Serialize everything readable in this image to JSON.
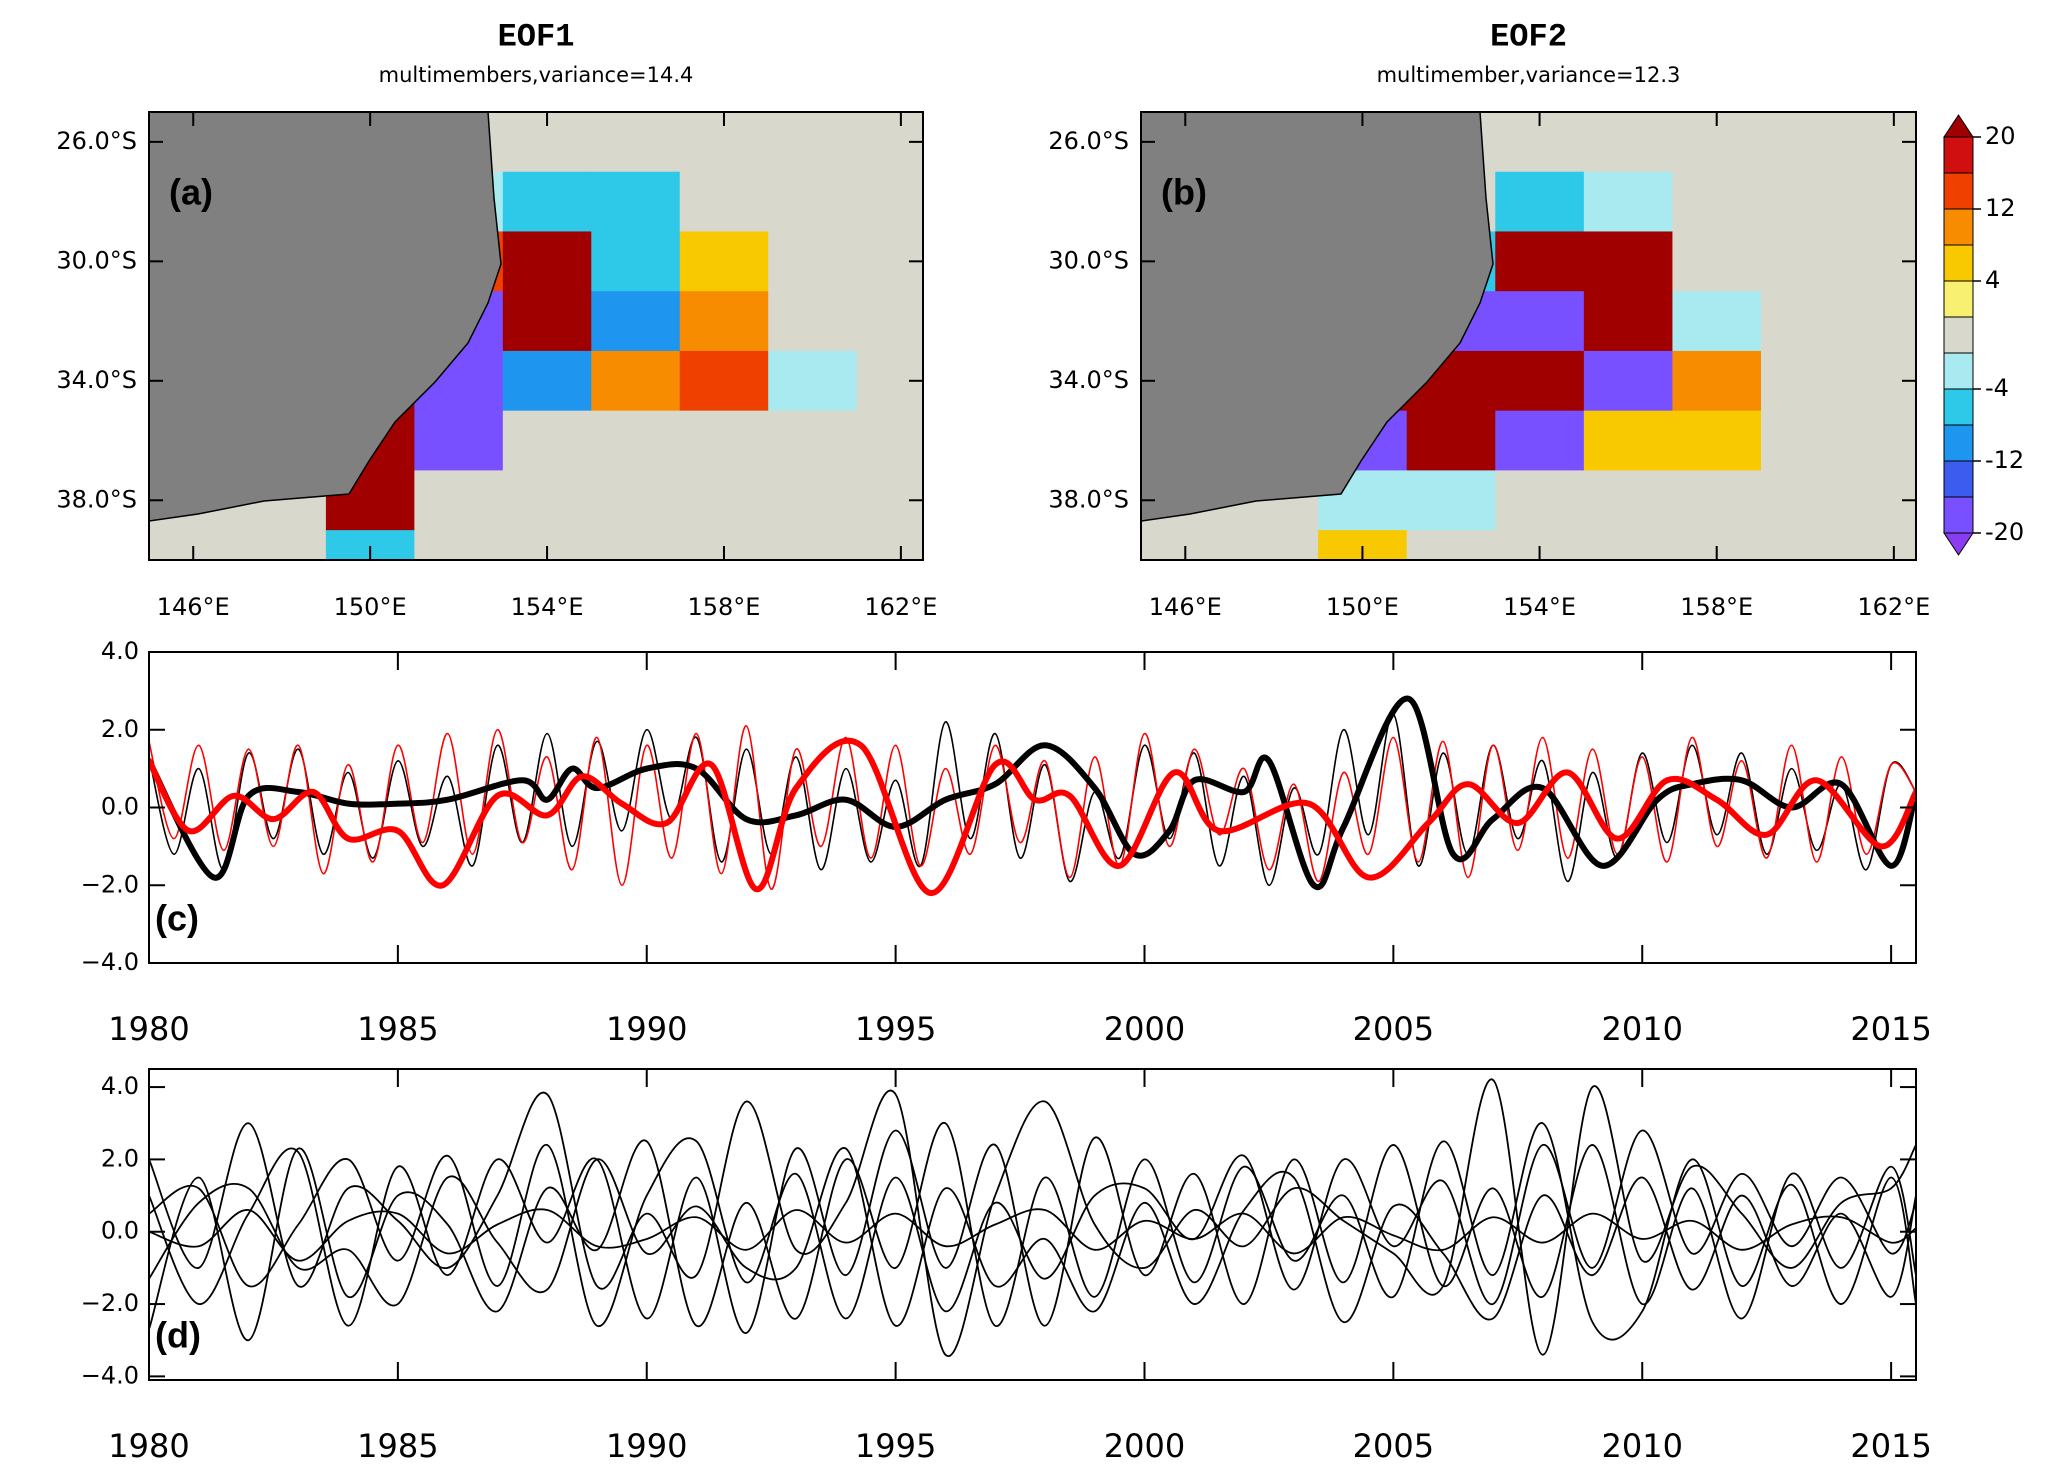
{
  "chart_data": [
    {
      "type": "map",
      "title": "EOF1",
      "subtitle": "multimembers,variance=14.4",
      "panel_label": "(a)",
      "xlim": [
        145,
        162.5
      ],
      "ylim": [
        25,
        40
      ],
      "xticks": [
        {
          "value": 146,
          "label": "146°E"
        },
        {
          "value": 150,
          "label": "150°E"
        },
        {
          "value": 154,
          "label": "154°E"
        },
        {
          "value": 158,
          "label": "158°E"
        },
        {
          "value": 162,
          "label": "162°E"
        }
      ],
      "yticks": [
        {
          "value": 26,
          "label": "26.0°S"
        },
        {
          "value": 30,
          "label": "30.0°S"
        },
        {
          "value": 34,
          "label": "34.0°S"
        },
        {
          "value": 38,
          "label": "38.0°S"
        }
      ],
      "lons": [
        146,
        148,
        150,
        152,
        154,
        156,
        158,
        160,
        162
      ],
      "lats": [
        26,
        28,
        30,
        32,
        34,
        36,
        38,
        40
      ],
      "field": [
        [
          null,
          null,
          null,
          0,
          0,
          0,
          0,
          0,
          0
        ],
        [
          null,
          null,
          null,
          -4,
          -8,
          -8,
          0,
          0,
          0
        ],
        [
          null,
          null,
          null,
          12,
          20,
          -8,
          4,
          0,
          0
        ],
        [
          null,
          null,
          -4,
          -20,
          20,
          -12,
          8,
          0,
          0
        ],
        [
          null,
          null,
          20,
          -20,
          -12,
          8,
          12,
          -4,
          0
        ],
        [
          null,
          null,
          20,
          -20,
          0,
          0,
          0,
          0,
          0
        ],
        [
          null,
          null,
          20,
          0,
          0,
          0,
          0,
          0,
          0
        ],
        [
          null,
          null,
          -8,
          0,
          0,
          0,
          0,
          0,
          0
        ]
      ]
    },
    {
      "type": "map",
      "title": "EOF2",
      "subtitle": "multimember,variance=12.3",
      "panel_label": "(b)",
      "xlim": [
        145,
        162.5
      ],
      "ylim": [
        25,
        40
      ],
      "xticks": [
        {
          "value": 146,
          "label": "146°E"
        },
        {
          "value": 150,
          "label": "150°E"
        },
        {
          "value": 154,
          "label": "154°E"
        },
        {
          "value": 158,
          "label": "158°E"
        },
        {
          "value": 162,
          "label": "162°E"
        }
      ],
      "yticks": [
        {
          "value": 26,
          "label": "26.0°S"
        },
        {
          "value": 30,
          "label": "30.0°S"
        },
        {
          "value": 34,
          "label": "34.0°S"
        },
        {
          "value": 38,
          "label": "38.0°S"
        }
      ],
      "lons": [
        146,
        148,
        150,
        152,
        154,
        156,
        158,
        160,
        162
      ],
      "lats": [
        26,
        28,
        30,
        32,
        34,
        36,
        38,
        40
      ],
      "field": [
        [
          null,
          null,
          null,
          0,
          0,
          0,
          0,
          0,
          0
        ],
        [
          null,
          null,
          null,
          0,
          -8,
          -4,
          0,
          0,
          0
        ],
        [
          null,
          null,
          null,
          -8,
          20,
          20,
          0,
          0,
          0
        ],
        [
          null,
          null,
          -8,
          -20,
          -20,
          20,
          -4,
          0,
          0
        ],
        [
          null,
          null,
          20,
          20,
          20,
          -20,
          8,
          0,
          0
        ],
        [
          null,
          null,
          -20,
          20,
          -20,
          4,
          4,
          0,
          0
        ],
        [
          null,
          null,
          -4,
          -4,
          0,
          0,
          0,
          0,
          0
        ],
        [
          null,
          null,
          4,
          0,
          0,
          0,
          0,
          0,
          0
        ]
      ],
      "colorbar": {
        "levels": [
          -20,
          -16,
          -12,
          -8,
          -4,
          -2,
          2,
          4,
          8,
          12,
          16,
          20
        ],
        "colors": [
          "#8a3cf0",
          "#7850ff",
          "#3c5cf0",
          "#1e96f0",
          "#2ec8e8",
          "#a8eaf0",
          "#d8d8cc",
          "#f8f070",
          "#f8c800",
          "#f88c00",
          "#f04000",
          "#d01010",
          "#a00000"
        ],
        "ticks": [
          20,
          12,
          4,
          -4,
          -12,
          -20
        ]
      }
    },
    {
      "type": "line",
      "panel_label": "(c)",
      "xlim": [
        1980,
        2015.5
      ],
      "ylim": [
        -4,
        4
      ],
      "xticks": [
        1980,
        1985,
        1990,
        1995,
        2000,
        2005,
        2010,
        2015
      ],
      "yticks": [
        {
          "value": 4,
          "label": "4.0"
        },
        {
          "value": 2,
          "label": "2.0"
        },
        {
          "value": 0,
          "label": "0.0"
        },
        {
          "value": -2,
          "label": "−2.0"
        },
        {
          "value": -4,
          "label": "−4.0"
        }
      ],
      "x": [
        1980,
        1980.5,
        1981,
        1981.5,
        1982,
        1982.5,
        1983,
        1983.5,
        1984,
        1984.5,
        1985,
        1985.5,
        1986,
        1986.5,
        1987,
        1987.5,
        1988,
        1988.5,
        1989,
        1989.5,
        1990,
        1990.5,
        1991,
        1991.5,
        1992,
        1992.5,
        1993,
        1993.5,
        1994,
        1994.5,
        1995,
        1995.5,
        1996,
        1996.5,
        1997,
        1997.5,
        1998,
        1998.5,
        1999,
        1999.5,
        2000,
        2000.5,
        2001,
        2001.5,
        2002,
        2002.5,
        2003,
        2003.5,
        2004,
        2004.5,
        2005,
        2005.5,
        2006,
        2006.5,
        2007,
        2007.5,
        2008,
        2008.5,
        2009,
        2009.5,
        2010,
        2010.5,
        2011,
        2011.5,
        2012,
        2012.5,
        2013,
        2013.5,
        2014,
        2014.5,
        2015,
        2015.5
      ],
      "series": [
        {
          "color": "#000000",
          "line_width": 1.6,
          "values": [
            1.3,
            -1.2,
            1.0,
            -1.6,
            1.4,
            -0.8,
            1.5,
            -1.2,
            0.9,
            -1.3,
            1.2,
            -1.0,
            0.8,
            -1.5,
            1.6,
            -0.9,
            1.9,
            -1.0,
            1.7,
            -0.6,
            2.0,
            -0.3,
            1.8,
            -1.4,
            1.5,
            -1.2,
            1.3,
            -1.6,
            1.0,
            -1.4,
            0.7,
            -1.5,
            2.2,
            -0.8,
            1.9,
            -1.3,
            1.1,
            -1.9,
            0.4,
            -1.3,
            1.6,
            -0.8,
            1.4,
            -1.5,
            0.8,
            -2.0,
            0.5,
            -1.2,
            2.0,
            -0.7,
            2.4,
            -1.5,
            1.4,
            -1.2,
            1.6,
            -0.8,
            1.2,
            -1.9,
            0.9,
            -1.3,
            1.4,
            -0.9,
            1.6,
            -0.7,
            1.4,
            -1.2,
            1.0,
            -1.1,
            0.6,
            -1.6,
            1.1,
            0.4
          ]
        },
        {
          "color": "#ff0000",
          "line_width": 1.6,
          "values": [
            1.7,
            -0.8,
            1.6,
            -1.1,
            1.5,
            -1.0,
            1.6,
            -1.7,
            1.1,
            -1.4,
            1.6,
            -0.9,
            1.9,
            -1.2,
            2.0,
            -0.9,
            1.3,
            -1.6,
            1.8,
            -2.0,
            1.6,
            -1.3,
            1.9,
            -1.7,
            2.1,
            -2.1,
            1.5,
            -1.0,
            1.8,
            -1.3,
            1.6,
            -1.5,
            1.0,
            -1.2,
            1.6,
            -0.9,
            1.2,
            -1.8,
            1.3,
            -1.5,
            1.9,
            -1.0,
            1.5,
            -0.7,
            1.0,
            -1.6,
            0.6,
            -1.9,
            0.9,
            -1.2,
            1.8,
            -1.4,
            1.7,
            -1.8,
            1.6,
            -1.1,
            1.8,
            -1.3,
            1.5,
            -1.2,
            1.3,
            -1.4,
            1.8,
            -1.0,
            1.2,
            -1.3,
            1.6,
            -1.4,
            1.3,
            -1.2,
            1.1,
            0.4
          ]
        },
        {
          "color": "#000000",
          "line_width": 6,
          "x": [
            1980,
            1981.3,
            1982,
            1983,
            1984,
            1985,
            1986,
            1987.5,
            1988,
            1988.5,
            1989,
            1990,
            1991,
            1992,
            1993,
            1994,
            1995,
            1996,
            1997,
            1998,
            1999,
            1999.8,
            2000.5,
            2001,
            2002,
            2002.5,
            2003.4,
            2004,
            2005.3,
            2006.2,
            2007,
            2008,
            2009.2,
            2010.3,
            2011,
            2012,
            2013,
            2014,
            2015,
            2015.5
          ],
          "values": [
            1.2,
            -1.8,
            0.3,
            0.4,
            0.1,
            0.1,
            0.2,
            0.7,
            0.2,
            1.0,
            0.5,
            1.0,
            1.0,
            -0.3,
            -0.2,
            0.2,
            -0.5,
            0.2,
            0.6,
            1.6,
            0.5,
            -1.2,
            -0.6,
            0.7,
            0.4,
            1.2,
            -2.0,
            -0.5,
            2.8,
            -1.2,
            -0.3,
            0.5,
            -1.5,
            0.2,
            0.6,
            0.7,
            0,
            0.6,
            -1.5,
            0.4
          ]
        },
        {
          "color": "#ff0000",
          "line_width": 6,
          "x": [
            1980,
            1980.8,
            1981.7,
            1982.5,
            1983.3,
            1984,
            1985,
            1985.9,
            1987,
            1988,
            1988.7,
            1989.5,
            1990.4,
            1991.3,
            1992.2,
            1993,
            1994.3,
            1995.7,
            1997,
            1997.8,
            1998.5,
            1999.5,
            2000.6,
            2001.5,
            2003.3,
            2004.5,
            2005.7,
            2006.5,
            2007.5,
            2008.5,
            2009.5,
            2010.5,
            2011.5,
            2012.5,
            2013.5,
            2014.8,
            2015.5
          ],
          "values": [
            1.2,
            -0.6,
            0.3,
            -0.3,
            0.4,
            -0.8,
            -0.6,
            -2.0,
            0.3,
            -0.2,
            0.8,
            0.1,
            -0.4,
            1.1,
            -2.1,
            0.5,
            1.6,
            -2.2,
            1.1,
            0.2,
            0.3,
            -1.5,
            0.9,
            -0.6,
            0.1,
            -1.8,
            -0.4,
            0.6,
            -0.4,
            0.9,
            -0.8,
            0.7,
            0.2,
            -0.7,
            0.7,
            -1.0,
            0.4
          ]
        }
      ]
    },
    {
      "type": "line",
      "panel_label": "(d)",
      "xlim": [
        1980,
        2015.5
      ],
      "ylim": [
        -4.1,
        4.5
      ],
      "xticks": [
        1980,
        1985,
        1990,
        1995,
        2000,
        2005,
        2010,
        2015
      ],
      "yticks": [
        {
          "value": 4,
          "label": "4.0"
        },
        {
          "value": 2,
          "label": "2.0"
        },
        {
          "value": 0,
          "label": "0.0"
        },
        {
          "value": -2,
          "label": "−2.0"
        },
        {
          "value": -4,
          "label": "−4.0"
        }
      ],
      "x": [
        1980,
        1981,
        1982,
        1983,
        1984,
        1985,
        1986,
        1987,
        1988,
        1989,
        1990,
        1991,
        1992,
        1993,
        1994,
        1995,
        1996,
        1997,
        1998,
        1999,
        2000,
        2001,
        2002,
        2003,
        2004,
        2005,
        2006,
        2007,
        2008,
        2009,
        2010,
        2011,
        2012,
        2013,
        2014,
        2015,
        2015.5
      ],
      "series": [
        {
          "color": "#000000",
          "line_width": 1.8,
          "values": [
            2.0,
            -1.0,
            3.0,
            -1.5,
            1.2,
            0.3,
            -1.0,
            1.0,
            3.8,
            -1.5,
            0.5,
            -1.2,
            3.6,
            -0.5,
            0.8,
            3.8,
            -3.4,
            1.0,
            3.6,
            0.2,
            -1.0,
            0.6,
            -0.4,
            1.2,
            0.3,
            -0.6,
            -1.5,
            4.2,
            -3.4,
            4.0,
            -0.8,
            1.8,
            0.5,
            -1.0,
            0.8,
            1.2,
            2.4
          ]
        },
        {
          "color": "#000000",
          "line_width": 1.8,
          "values": [
            -2.7,
            1.5,
            -3.0,
            2.3,
            -1.8,
            1.0,
            0.2,
            -2.2,
            1.2,
            -0.5,
            2.5,
            -2.6,
            0.8,
            -2.4,
            2.0,
            -1.0,
            3.0,
            -2.6,
            1.5,
            -1.8,
            2.0,
            -1.4,
            1.8,
            -0.8,
            1.0,
            -1.8,
            2.5,
            -1.2,
            3.0,
            -2.5,
            -2.2,
            2.0,
            -1.5,
            1.3,
            -2.0,
            1.5,
            -2.0
          ]
        },
        {
          "color": "#000000",
          "line_width": 1.8,
          "values": [
            1.0,
            -2.0,
            0.5,
            2.2,
            -2.6,
            1.8,
            -1.2,
            2.0,
            -0.3,
            2.0,
            -2.4,
            1.5,
            -2.8,
            2.3,
            -1.2,
            2.8,
            -1.0,
            2.4,
            -2.6,
            2.6,
            -1.2,
            1.6,
            -2.0,
            2.0,
            -1.4,
            2.4,
            -1.5,
            1.2,
            -1.8,
            2.4,
            -2.0,
            1.2,
            -2.4,
            1.6,
            -1.0,
            1.8,
            -1.2
          ]
        },
        {
          "color": "#000000",
          "line_width": 1.8,
          "values": [
            -1.3,
            0.8,
            1.2,
            -1.0,
            -0.5,
            -2.0,
            1.5,
            -0.3,
            -1.6,
            2.0,
            -0.6,
            0.7,
            -1.0,
            -1.0,
            2.3,
            -2.6,
            1.2,
            -1.5,
            -0.2,
            -2.2,
            0.8,
            -2.0,
            0.6,
            1.5,
            -2.5,
            0.7,
            -0.6,
            -2.4,
            1.0,
            -1.2,
            1.5,
            -1.6,
            1.0,
            -1.5,
            0.5,
            -1.8,
            1.0
          ]
        },
        {
          "color": "#000000",
          "line_width": 1.8,
          "values": [
            0.5,
            1.2,
            -1.5,
            0.2,
            2.0,
            -0.8,
            2.1,
            -1.5,
            2.4,
            -2.6,
            1.0,
            2.5,
            -1.4,
            1.6,
            -2.4,
            1.5,
            -2.2,
            0.8,
            -1.3,
            1.0,
            1.2,
            -0.2,
            2.1,
            -1.6,
            2.0,
            -0.4,
            1.4,
            -2.0,
            2.4,
            -1.0,
            2.8,
            -0.6,
            1.6,
            -0.4,
            1.5,
            -0.6,
            0.8
          ]
        },
        {
          "color": "#000000",
          "line_width": 1.8,
          "values": [
            0.0,
            -0.4,
            0.6,
            -0.8,
            0.3,
            0.5,
            -0.6,
            0.2,
            0.6,
            -0.4,
            -0.2,
            0.4,
            -0.5,
            0.6,
            -0.3,
            0.5,
            -0.4,
            0.2,
            0.6,
            -0.5,
            0.3,
            -0.2,
            0.5,
            -0.6,
            0.4,
            -0.1,
            -0.5,
            0.4,
            -0.3,
            0.5,
            -0.2,
            0.3,
            -0.5,
            0.2,
            0.4,
            -0.3,
            0.1
          ]
        }
      ]
    }
  ]
}
